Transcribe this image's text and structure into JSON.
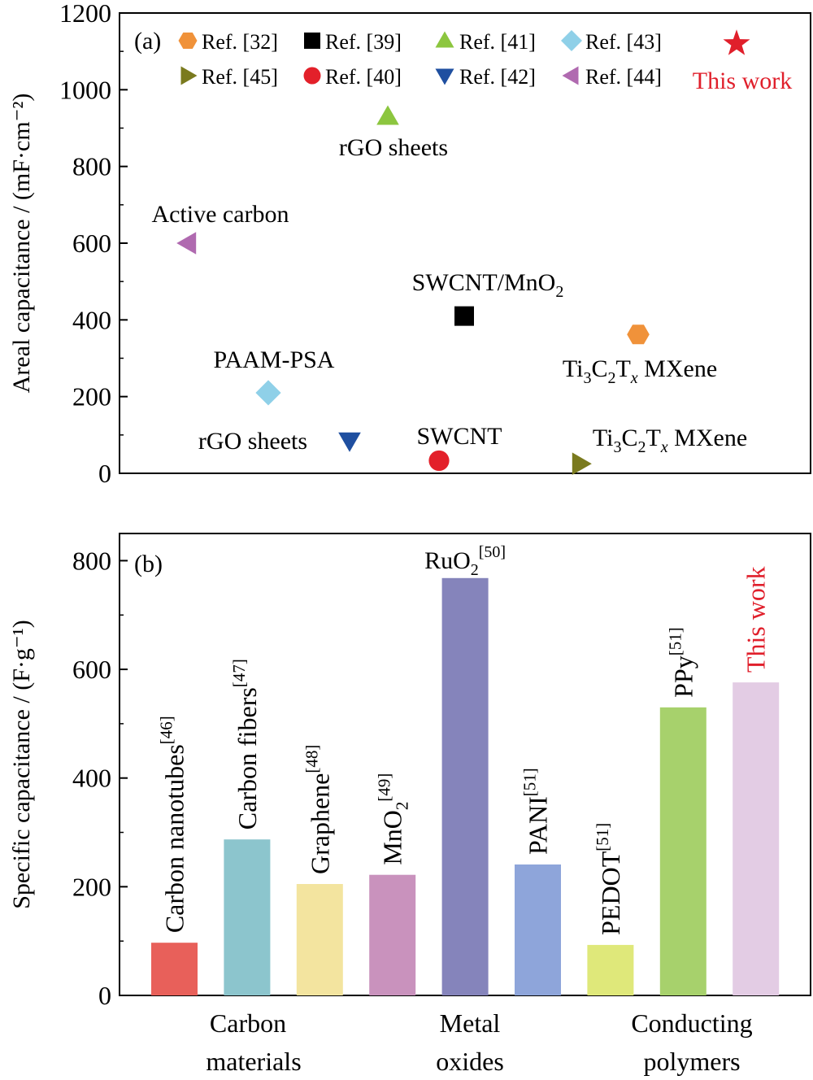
{
  "chart_data": [
    {
      "type": "scatter",
      "panel_label": "(a)",
      "ylabel": "Areal capacitance / (mF·cm⁻²)",
      "ylim": [
        0,
        1200
      ],
      "yticks": [
        0,
        200,
        400,
        600,
        800,
        1000,
        1200
      ],
      "grid": false,
      "legend_placement": "top",
      "points": [
        {
          "ref": "Ref. [32]",
          "label": "Ti3C2Tx MXene",
          "y": 362,
          "marker": "hexagon",
          "color": "#f0923a"
        },
        {
          "ref": "Ref. [39]",
          "label": "SWCNT/MnO2",
          "y": 410,
          "marker": "square",
          "color": "#000000"
        },
        {
          "ref": "Ref. [41]",
          "label": "rGO sheets",
          "y": 930,
          "marker": "triangle-up",
          "color": "#8cc63f"
        },
        {
          "ref": "Ref. [43]",
          "label": "PAAM-PSA",
          "y": 210,
          "marker": "diamond",
          "color": "#8fd0e8"
        },
        {
          "ref": "Ref. [45]",
          "label": "Ti3C2Tx MXene",
          "y": 25,
          "marker": "triangle-right",
          "color": "#7a7a1e"
        },
        {
          "ref": "Ref. [40]",
          "label": "SWCNT",
          "y": 33,
          "marker": "circle",
          "color": "#e3202a"
        },
        {
          "ref": "Ref. [42]",
          "label": "rGO sheets",
          "y": 85,
          "marker": "triangle-down",
          "color": "#1f4fa0"
        },
        {
          "ref": "Ref. [44]",
          "label": "Active carbon",
          "y": 600,
          "marker": "triangle-left",
          "color": "#b06ab0"
        },
        {
          "ref": "This work",
          "label": "",
          "y": 1120,
          "marker": "star",
          "color": "#e01f2b"
        }
      ]
    },
    {
      "type": "bar",
      "panel_label": "(b)",
      "ylabel": "Specific capacitance / (F·g⁻¹)",
      "ylim": [
        0,
        850
      ],
      "yticks": [
        0,
        200,
        400,
        600,
        800
      ],
      "grid": false,
      "bars": [
        {
          "name": "Carbon nanotubes",
          "ref": "[46]",
          "value": 97,
          "color": "#e8605a"
        },
        {
          "name": "Carbon fibers",
          "ref": "[47]",
          "value": 287,
          "color": "#8cc5cd"
        },
        {
          "name": "Graphene",
          "ref": "[48]",
          "value": 205,
          "color": "#f3e49f"
        },
        {
          "name": "MnO2",
          "ref": "[49]",
          "value": 222,
          "color": "#c992bd"
        },
        {
          "name": "RuO2",
          "ref": "[50]",
          "value": 768,
          "color": "#8584bb"
        },
        {
          "name": "PANI",
          "ref": "[51]",
          "value": 241,
          "color": "#8ea5da"
        },
        {
          "name": "PEDOT",
          "ref": "[51]",
          "value": 93,
          "color": "#dfe87a"
        },
        {
          "name": "PPy",
          "ref": "[51]",
          "value": 530,
          "color": "#a7d16c"
        },
        {
          "name": "This work",
          "ref": "",
          "value": 576,
          "color": "#e3cce4"
        }
      ],
      "groups": [
        {
          "line1": "Carbon",
          "line2": "materials"
        },
        {
          "line1": "Metal",
          "line2": "oxides"
        },
        {
          "line1": "Conducting",
          "line2": "polymers"
        }
      ]
    }
  ]
}
